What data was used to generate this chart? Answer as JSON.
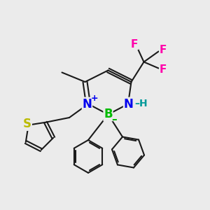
{
  "background_color": "#ebebeb",
  "bond_color": "#1a1a1a",
  "bond_width": 1.5,
  "atom_colors": {
    "N": "#0000ee",
    "B": "#00bb00",
    "S": "#bbbb00",
    "F": "#ff00aa",
    "C": "#1a1a1a",
    "H": "#009999"
  },
  "figsize": [
    3.0,
    3.0
  ],
  "dpi": 100
}
